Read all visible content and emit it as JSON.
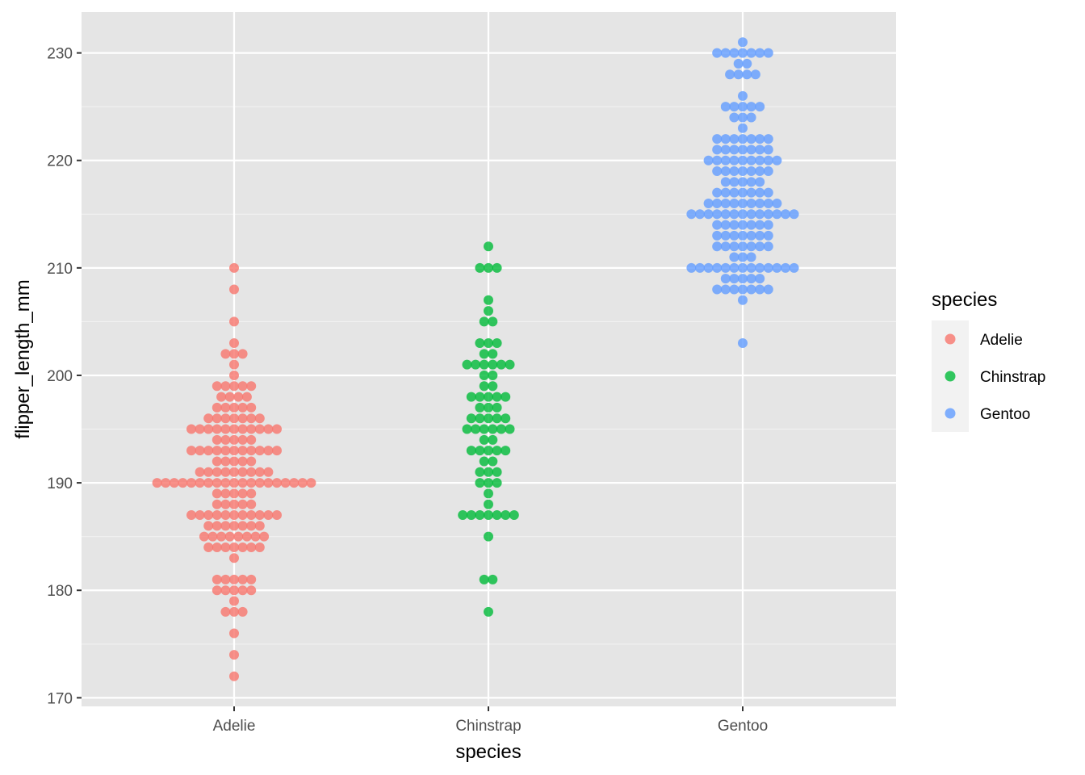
{
  "chart_data": {
    "type": "scatter",
    "subtype": "beeswarm",
    "title": "",
    "xlabel": "species",
    "ylabel": "flipper_length_mm",
    "ylim": [
      169.2,
      233.8
    ],
    "yticks": [
      170,
      180,
      190,
      200,
      210,
      220,
      230
    ],
    "categories": [
      "Adelie",
      "Chinstrap",
      "Gentoo"
    ],
    "grid": true,
    "background": "#e5e5e5",
    "legend": {
      "title": "species",
      "position": "right"
    },
    "point_alpha": 0.8,
    "series": [
      {
        "name": "Adelie",
        "color": "#f8766d",
        "counts": [
          [
            172,
            1
          ],
          [
            174,
            1
          ],
          [
            176,
            1
          ],
          [
            178,
            3
          ],
          [
            179,
            1
          ],
          [
            180,
            5
          ],
          [
            181,
            5
          ],
          [
            183,
            1
          ],
          [
            184,
            7
          ],
          [
            185,
            8
          ],
          [
            186,
            7
          ],
          [
            187,
            11
          ],
          [
            188,
            5
          ],
          [
            189,
            5
          ],
          [
            190,
            19
          ],
          [
            191,
            9
          ],
          [
            192,
            5
          ],
          [
            193,
            11
          ],
          [
            194,
            5
          ],
          [
            195,
            11
          ],
          [
            196,
            7
          ],
          [
            197,
            5
          ],
          [
            198,
            4
          ],
          [
            199,
            5
          ],
          [
            200,
            1
          ],
          [
            201,
            1
          ],
          [
            202,
            3
          ],
          [
            203,
            1
          ],
          [
            205,
            1
          ],
          [
            208,
            1
          ],
          [
            210,
            1
          ]
        ]
      },
      {
        "name": "Chinstrap",
        "color": "#00ba38",
        "counts": [
          [
            178,
            1
          ],
          [
            181,
            2
          ],
          [
            185,
            1
          ],
          [
            187,
            7
          ],
          [
            188,
            1
          ],
          [
            189,
            1
          ],
          [
            190,
            3
          ],
          [
            191,
            3
          ],
          [
            192,
            2
          ],
          [
            193,
            5
          ],
          [
            194,
            2
          ],
          [
            195,
            6
          ],
          [
            196,
            5
          ],
          [
            197,
            3
          ],
          [
            198,
            5
          ],
          [
            199,
            2
          ],
          [
            200,
            2
          ],
          [
            201,
            6
          ],
          [
            202,
            2
          ],
          [
            203,
            3
          ],
          [
            205,
            2
          ],
          [
            206,
            1
          ],
          [
            207,
            1
          ],
          [
            210,
            3
          ],
          [
            212,
            1
          ]
        ]
      },
      {
        "name": "Gentoo",
        "color": "#619cff",
        "counts": [
          [
            203,
            1
          ],
          [
            207,
            1
          ],
          [
            208,
            7
          ],
          [
            209,
            5
          ],
          [
            210,
            13
          ],
          [
            211,
            3
          ],
          [
            212,
            7
          ],
          [
            213,
            7
          ],
          [
            214,
            7
          ],
          [
            215,
            13
          ],
          [
            216,
            9
          ],
          [
            217,
            7
          ],
          [
            218,
            5
          ],
          [
            219,
            7
          ],
          [
            220,
            9
          ],
          [
            221,
            7
          ],
          [
            222,
            7
          ],
          [
            223,
            1
          ],
          [
            224,
            3
          ],
          [
            225,
            5
          ],
          [
            226,
            1
          ],
          [
            228,
            4
          ],
          [
            229,
            2
          ],
          [
            230,
            7
          ],
          [
            231,
            1
          ]
        ]
      }
    ]
  }
}
